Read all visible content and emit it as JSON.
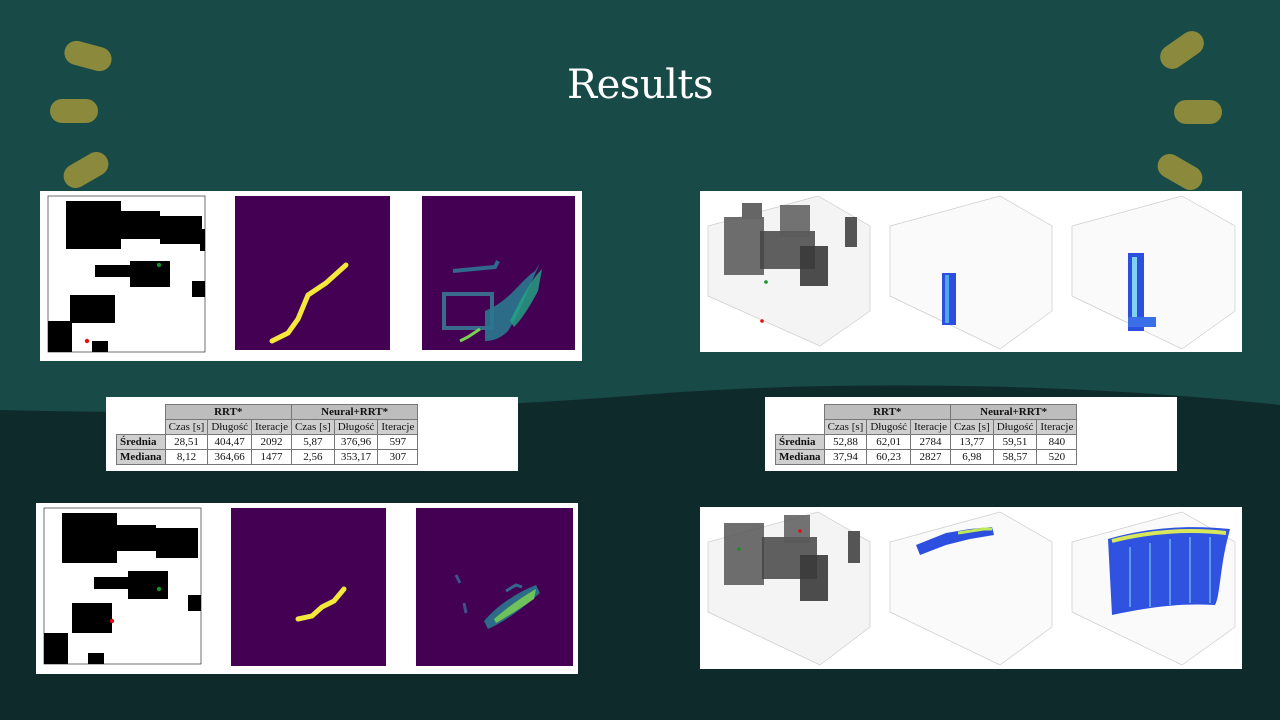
{
  "slide": {
    "title": "Results",
    "colors": {
      "background_top": "#184a48",
      "background_bottom": "#0f2a2a",
      "accent_dash": "#8b8a3c"
    }
  },
  "table_2d": {
    "groups": [
      "RRT*",
      "Neural+RRT*"
    ],
    "columns": [
      "Czas [s]",
      "Długość",
      "Iteracje",
      "Czas [s]",
      "Długość",
      "Iteracje"
    ],
    "rows": [
      {
        "label": "Średnia",
        "values": [
          "28,51",
          "404,47",
          "2092",
          "5,87",
          "376,96",
          "597"
        ]
      },
      {
        "label": "Mediana",
        "values": [
          "8,12",
          "364,66",
          "1477",
          "2,56",
          "353,17",
          "307"
        ]
      }
    ]
  },
  "table_3d": {
    "groups": [
      "RRT*",
      "Neural+RRT*"
    ],
    "columns": [
      "Czas [s]",
      "Długość",
      "Iteracje",
      "Czas [s]",
      "Długość",
      "Iteracje"
    ],
    "rows": [
      {
        "label": "Średnia",
        "values": [
          "52,88",
          "62,01",
          "2784",
          "13,77",
          "59,51",
          "840"
        ]
      },
      {
        "label": "Mediana",
        "values": [
          "37,94",
          "60,23",
          "2827",
          "6,98",
          "58,57",
          "520"
        ]
      }
    ]
  },
  "figures": [
    {
      "name": "2d-results-example-1",
      "panels": [
        "occupancy-map",
        "predicted-path-heatmap",
        "rrt-sampling-heatmap"
      ]
    },
    {
      "name": "3d-results-example-1",
      "panels": [
        "3d-occupancy-map",
        "3d-predicted-path",
        "3d-rrt-sampling"
      ]
    },
    {
      "name": "2d-results-example-2",
      "panels": [
        "occupancy-map",
        "predicted-path-heatmap",
        "rrt-sampling-heatmap"
      ]
    },
    {
      "name": "3d-results-example-2",
      "panels": [
        "3d-occupancy-map",
        "3d-predicted-path",
        "3d-rrt-sampling"
      ]
    }
  ]
}
